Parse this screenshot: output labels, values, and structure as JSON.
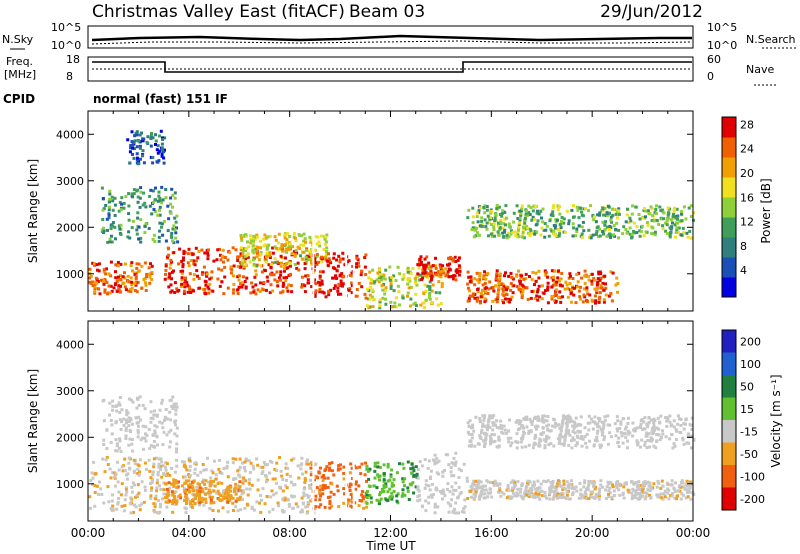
{
  "header": {
    "title": "Christmas Valley East (fitACF)",
    "beam": "Beam 03",
    "date": "29/Jun/2012"
  },
  "noise_panel": {
    "left_label": "N.Sky",
    "right_label": "N.Search",
    "ticks_left": [
      "10^5",
      "10^0"
    ],
    "ticks_right": [
      "10^5",
      "10^0"
    ]
  },
  "freq_panel": {
    "left_label_1": "Freq.",
    "left_label_2": "[MHz]",
    "ticks_left": [
      "18",
      "8"
    ],
    "right_label": "Nave",
    "ticks_right": [
      "60",
      "0"
    ]
  },
  "cpid": {
    "label": "CPID",
    "value": "normal (fast) 151 IF"
  },
  "colors": {
    "power_scale": [
      "#0000e0",
      "#1a4fb8",
      "#2f7f7a",
      "#3f9f5a",
      "#8fcf3a",
      "#f0e020",
      "#f0a000",
      "#f06000",
      "#e00000"
    ],
    "velocity_scale": [
      "#2020c0",
      "#2060d0",
      "#208040",
      "#60c030",
      "#c8c8c8",
      "#f0a020",
      "#f06010",
      "#e00000"
    ]
  },
  "chart_data": [
    {
      "type": "heatmap",
      "name": "power",
      "ylabel": "Slant Range [km]",
      "yticks": [
        "1000",
        "2000",
        "3000",
        "4000"
      ],
      "ylim": [
        200,
        4500
      ],
      "xlim": [
        "00:00",
        "24:00"
      ],
      "colorbar_label": "Power [dB]",
      "colorbar_ticks": [
        "4",
        "8",
        "12",
        "16",
        "20",
        "24",
        "28"
      ],
      "bands": [
        {
          "t0": 0.0,
          "t1": 2.5,
          "r0": 600,
          "r1": 1300,
          "level": 0.85
        },
        {
          "t0": 0.5,
          "t1": 3.5,
          "r0": 1700,
          "r1": 2900,
          "level": 0.35
        },
        {
          "t0": 3.0,
          "t1": 9.0,
          "r0": 600,
          "r1": 1600,
          "level": 0.9
        },
        {
          "t0": 6.0,
          "t1": 9.5,
          "r0": 1200,
          "r1": 1900,
          "level": 0.6
        },
        {
          "t0": 8.8,
          "t1": 11.0,
          "r0": 500,
          "r1": 1500,
          "level": 0.95
        },
        {
          "t0": 11.0,
          "t1": 14.0,
          "r0": 300,
          "r1": 1200,
          "level": 0.55
        },
        {
          "t0": 13.0,
          "t1": 14.7,
          "r0": 900,
          "r1": 1400,
          "level": 0.9
        },
        {
          "t0": 15.0,
          "t1": 21.0,
          "r0": 400,
          "r1": 1100,
          "level": 0.85
        },
        {
          "t0": 15.0,
          "t1": 24.0,
          "r0": 1800,
          "r1": 2500,
          "level": 0.45
        },
        {
          "t0": 1.5,
          "t1": 3.0,
          "r0": 3400,
          "r1": 4100,
          "level": 0.2
        }
      ]
    },
    {
      "type": "heatmap",
      "name": "velocity",
      "ylabel": "Slant Range [km]",
      "yticks": [
        "1000",
        "2000",
        "3000",
        "4000"
      ],
      "ylim": [
        200,
        4500
      ],
      "xlabel": "Time UT",
      "xticks": [
        "00:00",
        "04:00",
        "08:00",
        "12:00",
        "16:00",
        "20:00",
        "00:00"
      ],
      "colorbar_label": "Velocity [m s⁻¹]",
      "colorbar_ticks": [
        "200",
        "100",
        "50",
        "15",
        "-15",
        "-50",
        "-100",
        "-200"
      ],
      "bands": [
        {
          "t0": 0.0,
          "t1": 9.0,
          "r0": 400,
          "r1": 1600,
          "value": -10
        },
        {
          "t0": 0.5,
          "t1": 3.5,
          "r0": 1700,
          "r1": 2900,
          "value": 0
        },
        {
          "t0": 8.8,
          "t1": 11.0,
          "r0": 500,
          "r1": 1500,
          "value": -60
        },
        {
          "t0": 11.0,
          "t1": 13.0,
          "r0": 600,
          "r1": 1500,
          "value": 30
        },
        {
          "t0": 13.0,
          "t1": 15.0,
          "r0": 400,
          "r1": 1700,
          "value": 0
        },
        {
          "t0": 15.0,
          "t1": 24.0,
          "r0": 700,
          "r1": 1100,
          "value": -5
        },
        {
          "t0": 15.0,
          "t1": 24.0,
          "r0": 1800,
          "r1": 2500,
          "value": 0
        },
        {
          "t0": 3.0,
          "t1": 6.0,
          "r0": 600,
          "r1": 1100,
          "value": -40
        }
      ]
    }
  ]
}
